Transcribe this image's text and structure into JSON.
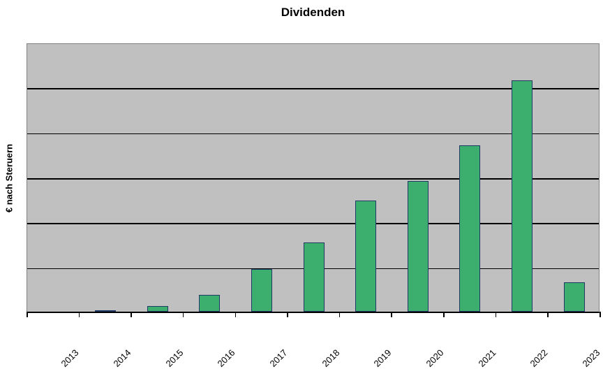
{
  "chart_data": {
    "type": "bar",
    "title": "Dividenden",
    "ylabel": "€ nach Steruern",
    "xlabel": "",
    "categories": [
      "2013",
      "2014",
      "2015",
      "2016",
      "2017",
      "2018",
      "2019",
      "2020",
      "2021",
      "2022",
      "2023"
    ],
    "values": [
      0,
      0.03,
      0.12,
      0.38,
      0.95,
      1.54,
      2.47,
      2.91,
      3.7,
      5.14,
      0.65
    ],
    "value_units": "relative gridline divisions (y axis shows no numeric tick labels)",
    "ylim": [
      0,
      6
    ],
    "gridlines": {
      "horizontal": true,
      "count": 5,
      "color": "#000000"
    },
    "legend": "none",
    "x_tick_label_rotation_deg": 45,
    "colors": {
      "page_background": "#ffffff",
      "plot_background": "#c0c0c0",
      "plot_border": "#808080",
      "axis_line": "#000000",
      "gridline": "#000000",
      "bar_fill": "#3cae6e",
      "bar_border": "#1f3864",
      "text": "#000000"
    }
  }
}
